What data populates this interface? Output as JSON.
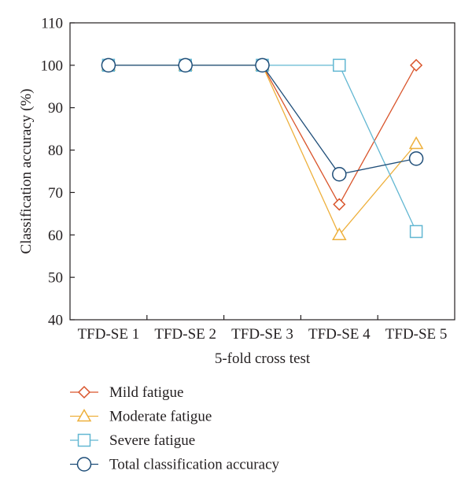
{
  "chart_data": {
    "type": "line",
    "title": "",
    "xlabel": "5-fold cross test",
    "ylabel": "Classification accuracy (%)",
    "categories": [
      "TFD-SE 1",
      "TFD-SE 2",
      "TFD-SE 3",
      "TFD-SE 4",
      "TFD-SE 5"
    ],
    "ylim": [
      40,
      110
    ],
    "yticks": [
      40,
      50,
      60,
      70,
      80,
      90,
      100,
      110
    ],
    "grid": false,
    "legend_position": "bottom",
    "series": [
      {
        "name": "Mild fatigue",
        "marker": "diamond",
        "color": "#d9542b",
        "values": [
          100,
          100,
          100,
          67.2,
          100
        ]
      },
      {
        "name": "Moderate fatigue",
        "marker": "triangle",
        "color": "#eeb03c",
        "values": [
          100,
          100,
          100,
          60,
          81.5
        ]
      },
      {
        "name": "Severe fatigue",
        "marker": "square",
        "color": "#62b7d2",
        "values": [
          100,
          100,
          100,
          100,
          60.8
        ]
      },
      {
        "name": "Total classification accuracy",
        "marker": "circle",
        "color": "#1f4e79",
        "values": [
          100,
          100,
          100,
          74.3,
          78
        ]
      }
    ]
  }
}
